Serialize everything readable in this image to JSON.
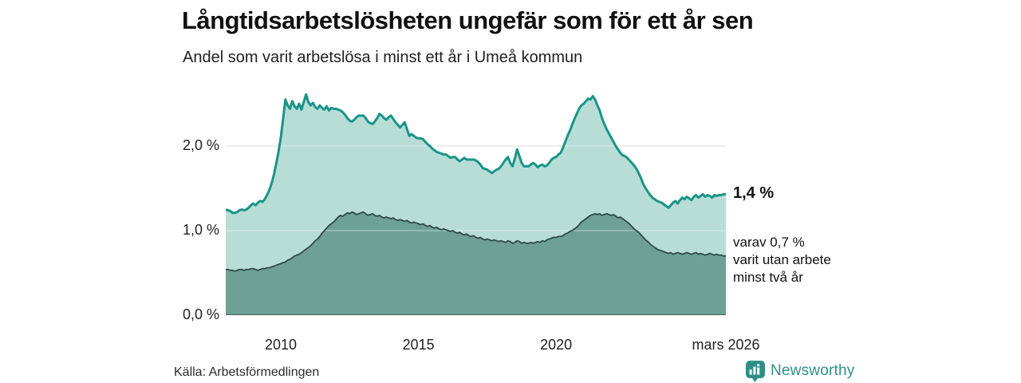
{
  "header": {
    "title": "Långtidsarbetslösheten ungefär som för ett år sen",
    "subtitle": "Andel som varit arbetslösa i minst ett år i Umeå kommun"
  },
  "footer": {
    "source": "Källa: Arbetsförmedlingen",
    "brand": "Newsworthy"
  },
  "colors": {
    "line_total": "#1a9488",
    "fill_total": "#b8ddd6",
    "line_two_years": "#2e4b46",
    "fill_two_years": "#6fa096",
    "gridline": "#d8d8d8",
    "baseline": "#4a5a56",
    "brand_teal": "#2f8f88"
  },
  "chart_data": {
    "type": "area",
    "title": "Långtidsarbetslösheten ungefär som för ett år sen",
    "subtitle": "Andel som varit arbetslösa i minst ett år i Umeå kommun",
    "unit": "%",
    "x_start": "2008-01",
    "x_end": "2026-03",
    "x_tick_labels": [
      "2010",
      "2015",
      "2020",
      "mars 2026"
    ],
    "x_tick_indices": [
      24,
      84,
      144,
      218
    ],
    "y_tick_labels": [
      "0,0 %",
      "1,0 %",
      "2,0 %"
    ],
    "y_tick_values": [
      0,
      1,
      2
    ],
    "ylim": [
      0,
      2.83
    ],
    "grid": true,
    "legend_position": "none",
    "annotations": {
      "last_value_label": "1,4 %",
      "sub_label_lines": [
        "varav 0,7 %",
        "varit utan arbete",
        "minst två år"
      ]
    },
    "series": [
      {
        "name": "Andel som varit arbetslösa minst ett år",
        "last_value": 1.4,
        "values": [
          1.25,
          1.24,
          1.23,
          1.21,
          1.21,
          1.22,
          1.24,
          1.25,
          1.24,
          1.25,
          1.27,
          1.3,
          1.32,
          1.3,
          1.33,
          1.35,
          1.34,
          1.37,
          1.42,
          1.48,
          1.56,
          1.66,
          1.79,
          1.93,
          2.1,
          2.32,
          2.55,
          2.48,
          2.44,
          2.53,
          2.47,
          2.44,
          2.5,
          2.43,
          2.52,
          2.61,
          2.52,
          2.48,
          2.51,
          2.46,
          2.44,
          2.48,
          2.45,
          2.43,
          2.47,
          2.42,
          2.45,
          2.44,
          2.44,
          2.43,
          2.42,
          2.4,
          2.37,
          2.33,
          2.3,
          2.29,
          2.31,
          2.34,
          2.36,
          2.36,
          2.36,
          2.33,
          2.29,
          2.27,
          2.26,
          2.29,
          2.33,
          2.38,
          2.36,
          2.33,
          2.31,
          2.34,
          2.36,
          2.32,
          2.28,
          2.25,
          2.22,
          2.25,
          2.28,
          2.2,
          2.12,
          2.14,
          2.12,
          2.1,
          2.09,
          2.09,
          2.08,
          2.05,
          2.02,
          2.0,
          1.97,
          1.95,
          1.93,
          1.92,
          1.91,
          1.9,
          1.9,
          1.88,
          1.86,
          1.87,
          1.87,
          1.84,
          1.82,
          1.84,
          1.86,
          1.84,
          1.84,
          1.84,
          1.84,
          1.83,
          1.81,
          1.78,
          1.74,
          1.73,
          1.72,
          1.7,
          1.68,
          1.7,
          1.72,
          1.73,
          1.76,
          1.8,
          1.84,
          1.87,
          1.8,
          1.76,
          1.85,
          1.96,
          1.88,
          1.8,
          1.76,
          1.76,
          1.76,
          1.78,
          1.8,
          1.78,
          1.75,
          1.77,
          1.78,
          1.76,
          1.77,
          1.8,
          1.84,
          1.86,
          1.87,
          1.9,
          1.92,
          1.98,
          2.05,
          2.12,
          2.18,
          2.25,
          2.32,
          2.38,
          2.44,
          2.48,
          2.5,
          2.53,
          2.56,
          2.55,
          2.59,
          2.55,
          2.48,
          2.42,
          2.33,
          2.26,
          2.2,
          2.15,
          2.1,
          2.05,
          2.0,
          1.96,
          1.92,
          1.89,
          1.88,
          1.86,
          1.83,
          1.8,
          1.77,
          1.73,
          1.68,
          1.62,
          1.55,
          1.5,
          1.46,
          1.42,
          1.39,
          1.37,
          1.35,
          1.34,
          1.33,
          1.31,
          1.29,
          1.27,
          1.3,
          1.33,
          1.35,
          1.32,
          1.36,
          1.39,
          1.37,
          1.4,
          1.38,
          1.36,
          1.4,
          1.42,
          1.39,
          1.41,
          1.43,
          1.4,
          1.42,
          1.41,
          1.39,
          1.42,
          1.41,
          1.42,
          1.42,
          1.43,
          1.43
        ]
      },
      {
        "name": "Andel som varit utan arbete minst två år",
        "last_value": 0.7,
        "values": [
          0.54,
          0.54,
          0.53,
          0.53,
          0.52,
          0.53,
          0.54,
          0.54,
          0.53,
          0.54,
          0.54,
          0.55,
          0.55,
          0.54,
          0.53,
          0.54,
          0.55,
          0.55,
          0.56,
          0.56,
          0.57,
          0.58,
          0.59,
          0.6,
          0.61,
          0.62,
          0.63,
          0.65,
          0.66,
          0.68,
          0.7,
          0.71,
          0.72,
          0.74,
          0.76,
          0.78,
          0.8,
          0.82,
          0.85,
          0.88,
          0.9,
          0.93,
          0.97,
          1.0,
          1.03,
          1.06,
          1.08,
          1.1,
          1.13,
          1.16,
          1.18,
          1.17,
          1.19,
          1.21,
          1.2,
          1.22,
          1.21,
          1.19,
          1.2,
          1.21,
          1.22,
          1.2,
          1.18,
          1.19,
          1.2,
          1.18,
          1.17,
          1.18,
          1.16,
          1.15,
          1.16,
          1.15,
          1.14,
          1.15,
          1.13,
          1.12,
          1.13,
          1.12,
          1.11,
          1.12,
          1.1,
          1.09,
          1.1,
          1.09,
          1.08,
          1.07,
          1.08,
          1.06,
          1.05,
          1.06,
          1.04,
          1.03,
          1.04,
          1.02,
          1.01,
          1.02,
          1.01,
          1.0,
          0.99,
          1.0,
          0.98,
          0.97,
          0.98,
          0.96,
          0.95,
          0.96,
          0.94,
          0.93,
          0.94,
          0.92,
          0.91,
          0.92,
          0.9,
          0.89,
          0.9,
          0.89,
          0.88,
          0.89,
          0.88,
          0.87,
          0.88,
          0.87,
          0.86,
          0.88,
          0.87,
          0.85,
          0.86,
          0.88,
          0.87,
          0.85,
          0.86,
          0.85,
          0.85,
          0.86,
          0.85,
          0.86,
          0.87,
          0.86,
          0.88,
          0.87,
          0.89,
          0.9,
          0.91,
          0.92,
          0.92,
          0.93,
          0.93,
          0.94,
          0.96,
          0.97,
          0.99,
          1.0,
          1.02,
          1.04,
          1.07,
          1.1,
          1.12,
          1.14,
          1.16,
          1.18,
          1.19,
          1.2,
          1.19,
          1.2,
          1.18,
          1.19,
          1.2,
          1.19,
          1.18,
          1.19,
          1.17,
          1.15,
          1.16,
          1.14,
          1.12,
          1.1,
          1.08,
          1.05,
          1.02,
          1.0,
          0.98,
          0.95,
          0.92,
          0.89,
          0.87,
          0.84,
          0.82,
          0.8,
          0.78,
          0.77,
          0.76,
          0.75,
          0.74,
          0.73,
          0.74,
          0.72,
          0.73,
          0.74,
          0.73,
          0.72,
          0.73,
          0.74,
          0.73,
          0.72,
          0.73,
          0.74,
          0.72,
          0.73,
          0.72,
          0.71,
          0.72,
          0.73,
          0.72,
          0.71,
          0.72,
          0.71,
          0.71,
          0.7,
          0.7
        ]
      }
    ]
  }
}
